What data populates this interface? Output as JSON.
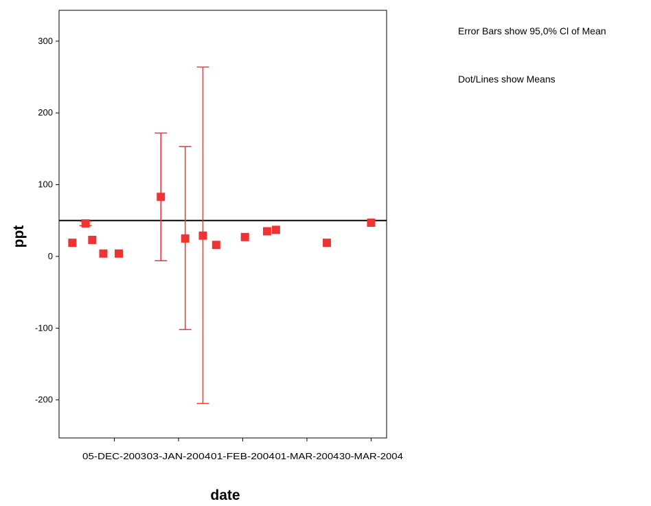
{
  "notes": {
    "error_bars": "Error Bars show 95,0% Cl of Mean",
    "dots": "Dot/Lines show Means"
  },
  "colors": {
    "marker": "#ee3333",
    "errorbar": "#ee3333",
    "reference_line": "#000000",
    "axis": "#000000"
  },
  "chart_data": {
    "type": "scatter",
    "title": "",
    "xlabel": "date",
    "ylabel": "ppt",
    "xlim": [
      "2003-11-10",
      "2004-04-06"
    ],
    "ylim": [
      -253,
      343
    ],
    "y_ticks": [
      -200,
      -100,
      0,
      100,
      200,
      300
    ],
    "y_tick_labels": [
      "-200",
      "-100",
      "0",
      "100",
      "200",
      "300"
    ],
    "x_ticks": [
      "2003-12-05",
      "2004-01-03",
      "2004-02-01",
      "2004-03-01",
      "2004-03-30"
    ],
    "x_tick_labels": [
      "05-DEC-2003",
      "03-JAN-2004",
      "01-FEB-2004",
      "01-MAR-2004",
      "30-MAR-2004"
    ],
    "reference_line": 50,
    "grid": false,
    "marker": "square",
    "points": [
      {
        "x": "2003-11-16",
        "y": 19
      },
      {
        "x": "2003-11-22",
        "y": 46,
        "lower": 43,
        "upper": 49
      },
      {
        "x": "2003-11-25",
        "y": 23
      },
      {
        "x": "2003-11-30",
        "y": 4
      },
      {
        "x": "2003-12-07",
        "y": 4
      },
      {
        "x": "2003-12-26",
        "y": 83,
        "lower": -6,
        "upper": 172
      },
      {
        "x": "2004-01-06",
        "y": 25,
        "lower": -102,
        "upper": 153
      },
      {
        "x": "2004-01-14",
        "y": 29,
        "lower": -205,
        "upper": 264
      },
      {
        "x": "2004-01-20",
        "y": 16
      },
      {
        "x": "2004-02-02",
        "y": 27
      },
      {
        "x": "2004-02-12",
        "y": 35
      },
      {
        "x": "2004-02-16",
        "y": 37
      },
      {
        "x": "2004-03-10",
        "y": 19
      },
      {
        "x": "2004-03-30",
        "y": 47
      }
    ]
  }
}
